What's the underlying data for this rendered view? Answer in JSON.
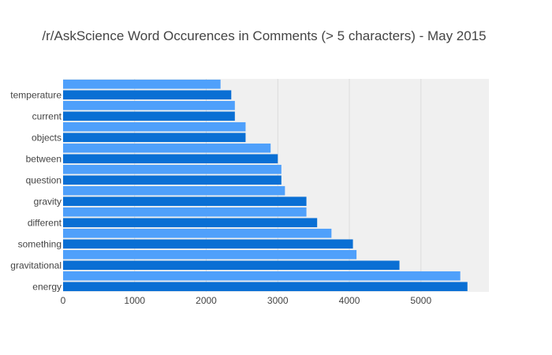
{
  "chart_data": {
    "type": "bar",
    "orientation": "horizontal",
    "title": "/r/AskScience Word Occurences in Comments (> 5 characters) - May 2015",
    "xlabel": "",
    "ylabel": "",
    "xlim": [
      0,
      5950
    ],
    "x_ticks": [
      0,
      1000,
      2000,
      3000,
      4000,
      5000
    ],
    "grid": "x",
    "background": "#f0f0f0",
    "colors": {
      "primary": "#0a6fd4",
      "secondary": "#4fa0fb"
    },
    "categories": [
      "energy",
      "",
      "gravitational",
      "",
      "something",
      "",
      "different",
      "",
      "gravity",
      "",
      "question",
      "",
      "between",
      "",
      "objects",
      "",
      "current",
      "",
      "temperature",
      ""
    ],
    "values": [
      5650,
      5550,
      4700,
      4100,
      4050,
      3750,
      3550,
      3400,
      3400,
      3100,
      3050,
      3050,
      3000,
      2900,
      2550,
      2550,
      2400,
      2400,
      2350,
      2200
    ]
  }
}
